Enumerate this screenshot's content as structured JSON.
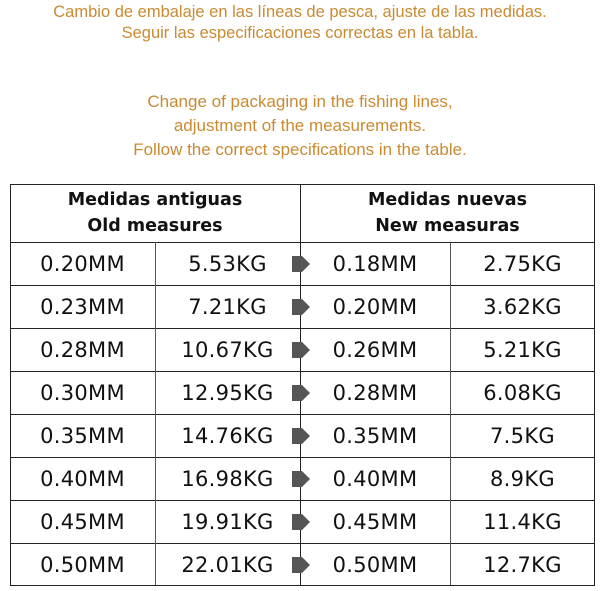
{
  "notice": {
    "es_line1": "Cambio de embalaje en las líneas de pesca, ajuste de las medidas.",
    "es_line2": "Seguir las especificaciones correctas en la tabla.",
    "en_line1": "Change of packaging in the fishing lines,",
    "en_line2": "adjustment of the measurements.",
    "en_line3": "Follow the correct specifications in the table."
  },
  "colors": {
    "notice_text": "#c98a32",
    "arrow": "#555555",
    "border": "#222222"
  },
  "table": {
    "old_header_es": "Medidas antiguas",
    "old_header_en": "Old measures",
    "new_header_es": "Medidas nuevas",
    "new_header_en": "New measuras",
    "arrow_icon": "right-arrow-icon",
    "rows": [
      {
        "old_mm": "0.20MM",
        "old_kg": "5.53KG",
        "new_mm": "0.18MM",
        "new_kg": "2.75KG"
      },
      {
        "old_mm": "0.23MM",
        "old_kg": "7.21KG",
        "new_mm": "0.20MM",
        "new_kg": "3.62KG"
      },
      {
        "old_mm": "0.28MM",
        "old_kg": "10.67KG",
        "new_mm": "0.26MM",
        "new_kg": "5.21KG"
      },
      {
        "old_mm": "0.30MM",
        "old_kg": "12.95KG",
        "new_mm": "0.28MM",
        "new_kg": "6.08KG"
      },
      {
        "old_mm": "0.35MM",
        "old_kg": "14.76KG",
        "new_mm": "0.35MM",
        "new_kg": "7.5KG"
      },
      {
        "old_mm": "0.40MM",
        "old_kg": "16.98KG",
        "new_mm": "0.40MM",
        "new_kg": "8.9KG"
      },
      {
        "old_mm": "0.45MM",
        "old_kg": "19.91KG",
        "new_mm": "0.45MM",
        "new_kg": "11.4KG"
      },
      {
        "old_mm": "0.50MM",
        "old_kg": "22.01KG",
        "new_mm": "0.50MM",
        "new_kg": "12.7KG"
      }
    ]
  }
}
